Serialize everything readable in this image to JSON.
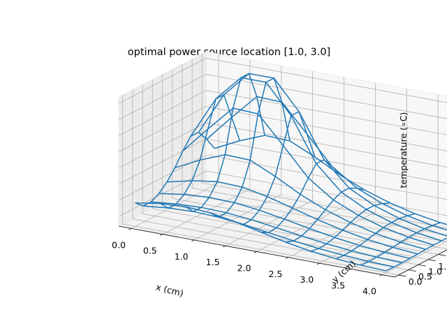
{
  "chart_data": {
    "type": "wireframe",
    "title": "optimal power source location [1.0, 3.0]",
    "xlabel": "x (cm)",
    "ylabel": "y (cm)",
    "zlabel": "temperature (∘C)",
    "xlim": [
      -0.2,
      4.2
    ],
    "ylim": [
      -0.2,
      4.2
    ],
    "zlim": [
      48.5,
      68.5
    ],
    "xticks": [
      "0.0",
      "0.5",
      "1.0",
      "1.5",
      "2.0",
      "2.5",
      "3.0",
      "3.5",
      "4.0"
    ],
    "yticks": [
      "0.0",
      "0.5",
      "1.0",
      "1.5",
      "2.0",
      "2.5",
      "3.0",
      "3.5",
      "4.0"
    ],
    "zticks": [
      "50.0",
      "52.5",
      "55.0",
      "57.5",
      "60.0",
      "62.5",
      "65.0",
      "67.5"
    ],
    "grid": true,
    "color": "#1f77b4",
    "x": [
      0.0,
      0.4,
      0.8,
      1.2,
      1.6,
      2.0,
      2.4,
      2.8,
      3.2,
      3.6,
      4.0
    ],
    "y": [
      0.0,
      0.4,
      0.8,
      1.2,
      1.6,
      2.0,
      2.4,
      2.8,
      3.2,
      3.6,
      4.0
    ],
    "z_source_center": [
      1.0,
      3.0
    ],
    "z_base": 49.0,
    "z_peak": 68.5,
    "z_description_values": {
      "peak_temperature": 68.5,
      "far_corner_temperature": 49.5,
      "near_edge_temperature": 52.5
    }
  }
}
